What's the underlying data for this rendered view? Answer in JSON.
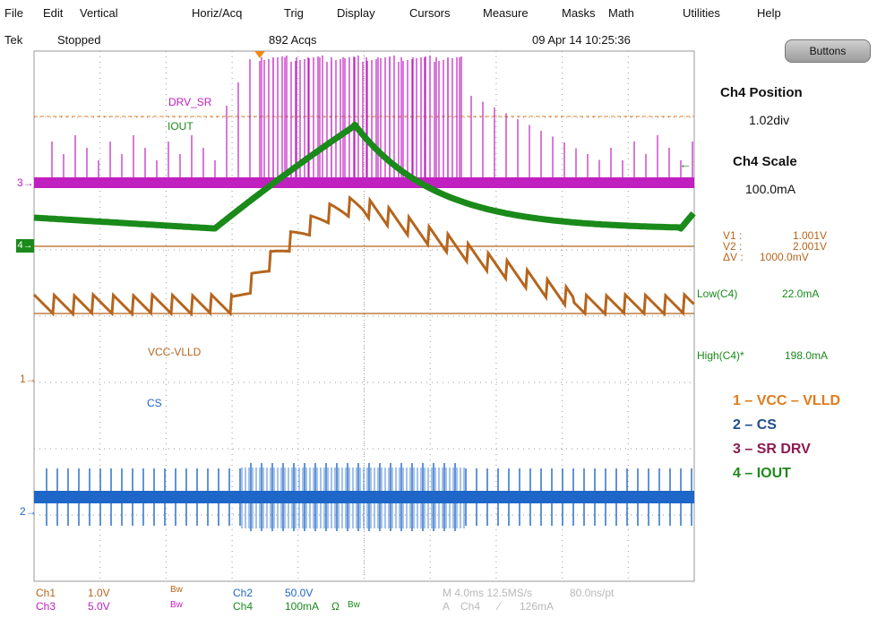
{
  "menu": [
    "File",
    "Edit",
    "Vertical",
    "Horiz/Acq",
    "Trig",
    "Display",
    "Cursors",
    "Measure",
    "Masks",
    "Math",
    "Utilities",
    "Help"
  ],
  "status": {
    "brand": "Tek",
    "state": "Stopped",
    "acqs": "892 Acqs",
    "datetime": "09 Apr 14 10:25:36"
  },
  "buttons_label": "Buttons",
  "side": {
    "pos_title": "Ch4 Position",
    "pos_value": "1.02div",
    "scale_title": "Ch4 Scale",
    "scale_value": "100.0mA"
  },
  "cursor_readout": {
    "v1_label": "V1 :",
    "v1_value": "1.001V",
    "v2_label": "V2 :",
    "v2_value": "2.001V",
    "dv_label": "ΔV :",
    "dv_value": "1000.0mV"
  },
  "measurements": {
    "low_label": "Low(C4)",
    "low_value": "22.0mA",
    "high_label": "High(C4)*",
    "high_value": "198.0mA"
  },
  "traces": {
    "drv_sr": "DRV_SR",
    "iout": "IOUT",
    "vcc": "VCC-VLLD",
    "cs": "CS"
  },
  "channel_markers": {
    "ch1": "1",
    "ch2": "2",
    "ch3": "3",
    "ch4": "4"
  },
  "legend": [
    {
      "text": "1 – VCC – VLLD",
      "color": "#e07b1a"
    },
    {
      "text": "2 – CS",
      "color": "#1f4e8c"
    },
    {
      "text": "3 – SR DRV",
      "color": "#8e1a4f"
    },
    {
      "text": "4 – IOUT",
      "color": "#1f8a1f"
    }
  ],
  "bottom": {
    "ch1": "Ch1",
    "ch1_scale": "1.0V",
    "ch1_bw": "Bw",
    "ch2": "Ch2",
    "ch2_scale": "50.0V",
    "ch3": "Ch3",
    "ch3_scale": "5.0V",
    "ch3_bw": "Bw",
    "ch4": "Ch4",
    "ch4_scale": "100mA",
    "ch4_ohm": "Ω",
    "ch4_bw": "Bw",
    "horiz": "M 4.0ms 12.5MS/s",
    "ns_pt": "80.0ns/pt",
    "trig_a": "A",
    "trig_ch": "Ch4",
    "trig_level": "126mA"
  },
  "colors": {
    "ch1": "#b5651d",
    "ch2": "#1e66c8",
    "ch3": "#c020c0",
    "ch4": "#1a8a1a",
    "cursor": "#e08020",
    "grid": "#9a9a9a"
  }
}
